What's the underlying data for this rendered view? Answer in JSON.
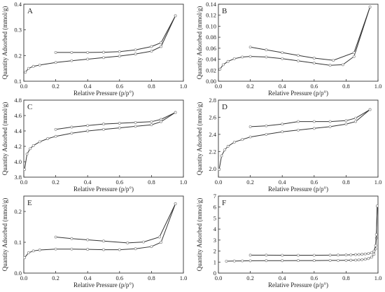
{
  "figure": {
    "panels": [
      "A",
      "B",
      "C",
      "D",
      "E",
      "F"
    ]
  },
  "chart_data": [
    {
      "panel": "A",
      "type": "line",
      "xlabel": "Relative Pressure (p/p°)",
      "ylabel": "Quantity Adsorbed (mmol/g)",
      "xlim": [
        0.0,
        1.0
      ],
      "ylim": [
        0.1,
        0.4
      ],
      "xticks": [
        "0.0",
        "0.2",
        "0.4",
        "0.6",
        "0.8",
        "1.0"
      ],
      "yticks": [
        "0.1",
        "0.2",
        "0.3",
        "0.4"
      ],
      "series": [
        {
          "role": "adsorption",
          "x": [
            0.01,
            0.03,
            0.06,
            0.1,
            0.2,
            0.3,
            0.4,
            0.5,
            0.6,
            0.7,
            0.8,
            0.86,
            0.95
          ],
          "y": [
            0.135,
            0.15,
            0.158,
            0.163,
            0.173,
            0.18,
            0.186,
            0.192,
            0.198,
            0.206,
            0.217,
            0.235,
            0.355
          ]
        },
        {
          "role": "desorption",
          "x": [
            0.95,
            0.86,
            0.8,
            0.7,
            0.6,
            0.5,
            0.4,
            0.3,
            0.2
          ],
          "y": [
            0.355,
            0.25,
            0.235,
            0.222,
            0.215,
            0.213,
            0.212,
            0.212,
            0.212
          ]
        }
      ]
    },
    {
      "panel": "B",
      "type": "line",
      "xlabel": "Relative Pressure (p/p°)",
      "ylabel": "Quantity Adsorbed (mmol/g)",
      "xlim": [
        0.0,
        1.0
      ],
      "ylim": [
        0.0,
        0.14
      ],
      "xticks": [
        "0.0",
        "0.2",
        "0.4",
        "0.6",
        "0.8",
        "1.0"
      ],
      "yticks": [
        "0.00",
        "0.02",
        "0.04",
        "0.06",
        "0.08",
        "0.10",
        "0.12",
        "0.14"
      ],
      "series": [
        {
          "role": "adsorption",
          "x": [
            0.01,
            0.03,
            0.06,
            0.1,
            0.15,
            0.2,
            0.3,
            0.4,
            0.5,
            0.6,
            0.7,
            0.78,
            0.85,
            0.95
          ],
          "y": [
            0.022,
            0.03,
            0.036,
            0.041,
            0.044,
            0.045,
            0.044,
            0.041,
            0.037,
            0.033,
            0.029,
            0.03,
            0.045,
            0.135
          ]
        },
        {
          "role": "desorption",
          "x": [
            0.95,
            0.85,
            0.72,
            0.6,
            0.5,
            0.4,
            0.3,
            0.2
          ],
          "y": [
            0.135,
            0.052,
            0.038,
            0.042,
            0.047,
            0.052,
            0.057,
            0.062
          ]
        }
      ]
    },
    {
      "panel": "C",
      "type": "line",
      "xlabel": "Relative Pressure (p/p°)",
      "ylabel": "Quantity Adsorbed (mmol/g)",
      "xlim": [
        0.0,
        1.0
      ],
      "ylim": [
        3.8,
        4.8
      ],
      "xticks": [
        "0.0",
        "0.2",
        "0.4",
        "0.6",
        "0.8",
        "1.0"
      ],
      "yticks": [
        "3.8",
        "4.0",
        "4.2",
        "4.4",
        "4.6",
        "4.8"
      ],
      "series": [
        {
          "role": "adsorption",
          "x": [
            0.005,
            0.02,
            0.04,
            0.06,
            0.1,
            0.15,
            0.2,
            0.3,
            0.4,
            0.5,
            0.6,
            0.7,
            0.8,
            0.86,
            0.95
          ],
          "y": [
            3.9,
            4.1,
            4.17,
            4.21,
            4.26,
            4.3,
            4.33,
            4.37,
            4.4,
            4.42,
            4.44,
            4.46,
            4.48,
            4.52,
            4.64
          ]
        },
        {
          "role": "desorption",
          "x": [
            0.95,
            0.86,
            0.8,
            0.7,
            0.6,
            0.5,
            0.4,
            0.3,
            0.2
          ],
          "y": [
            4.64,
            4.55,
            4.52,
            4.51,
            4.5,
            4.49,
            4.47,
            4.45,
            4.42
          ]
        }
      ]
    },
    {
      "panel": "D",
      "type": "line",
      "xlabel": "Relative Pressure (p/p°)",
      "ylabel": "Quantity Adsorbed (mmol/g)",
      "xlim": [
        0.0,
        1.0
      ],
      "ylim": [
        1.9,
        2.8
      ],
      "xticks": [
        "0.0",
        "0.2",
        "0.4",
        "0.6",
        "0.8",
        "1.0"
      ],
      "yticks": [
        "2.0",
        "2.2",
        "2.4",
        "2.6",
        "2.8"
      ],
      "series": [
        {
          "role": "adsorption",
          "x": [
            0.005,
            0.02,
            0.04,
            0.06,
            0.1,
            0.15,
            0.2,
            0.3,
            0.4,
            0.5,
            0.6,
            0.7,
            0.8,
            0.86,
            0.95
          ],
          "y": [
            1.99,
            2.15,
            2.22,
            2.26,
            2.31,
            2.34,
            2.37,
            2.4,
            2.43,
            2.45,
            2.47,
            2.49,
            2.52,
            2.55,
            2.69
          ]
        },
        {
          "role": "desorption",
          "x": [
            0.95,
            0.86,
            0.8,
            0.7,
            0.6,
            0.5,
            0.4,
            0.3,
            0.2
          ],
          "y": [
            2.69,
            2.59,
            2.56,
            2.55,
            2.55,
            2.55,
            2.52,
            2.5,
            2.49
          ]
        }
      ]
    },
    {
      "panel": "E",
      "type": "line",
      "xlabel": "Relative Pressure (p/p°)",
      "ylabel": "Quantity Adsorbed (mmol/g)",
      "xlim": [
        0.0,
        1.0
      ],
      "ylim": [
        0.0,
        0.25
      ],
      "xticks": [
        "0.0",
        "0.2",
        "0.4",
        "0.6",
        "0.8",
        "1.0"
      ],
      "yticks": [
        "0.0",
        "0.1",
        "0.2"
      ],
      "series": [
        {
          "role": "adsorption",
          "x": [
            0.005,
            0.03,
            0.06,
            0.1,
            0.2,
            0.3,
            0.4,
            0.5,
            0.6,
            0.7,
            0.8,
            0.86,
            0.95
          ],
          "y": [
            0.05,
            0.066,
            0.072,
            0.075,
            0.078,
            0.078,
            0.077,
            0.076,
            0.076,
            0.079,
            0.086,
            0.1,
            0.225
          ]
        },
        {
          "role": "desorption",
          "x": [
            0.95,
            0.85,
            0.75,
            0.65,
            0.5,
            0.4,
            0.3,
            0.2
          ],
          "y": [
            0.225,
            0.117,
            0.101,
            0.098,
            0.104,
            0.108,
            0.112,
            0.117
          ]
        }
      ]
    },
    {
      "panel": "F",
      "type": "line",
      "xlabel": "Relative Pressure (p/p°)",
      "ylabel": "Quantity Adsorbed (mmol/g)",
      "xlim": [
        0.0,
        1.0
      ],
      "ylim": [
        0,
        7
      ],
      "xticks": [
        "0.0",
        "0.2",
        "0.4",
        "0.6",
        "0.8",
        "1.0"
      ],
      "yticks": [
        "0",
        "1",
        "2",
        "3",
        "4",
        "5",
        "6",
        "7"
      ],
      "series": [
        {
          "role": "adsorption",
          "x": [
            0.05,
            0.1,
            0.15,
            0.2,
            0.3,
            0.4,
            0.5,
            0.6,
            0.7,
            0.75,
            0.8,
            0.83,
            0.86,
            0.88,
            0.9,
            0.92,
            0.94,
            0.96,
            0.975,
            0.985,
            0.99,
            0.995
          ],
          "y": [
            1.08,
            1.1,
            1.11,
            1.12,
            1.13,
            1.13,
            1.14,
            1.14,
            1.15,
            1.15,
            1.16,
            1.17,
            1.18,
            1.2,
            1.22,
            1.26,
            1.32,
            1.45,
            1.7,
            2.2,
            3.2,
            6.1
          ]
        },
        {
          "role": "desorption",
          "x": [
            0.995,
            0.99,
            0.985,
            0.975,
            0.96,
            0.94,
            0.92,
            0.9,
            0.88,
            0.86,
            0.83,
            0.8,
            0.75,
            0.7,
            0.6,
            0.5,
            0.4,
            0.3,
            0.2
          ],
          "y": [
            6.1,
            3.5,
            2.5,
            2.0,
            1.85,
            1.78,
            1.74,
            1.71,
            1.69,
            1.68,
            1.66,
            1.65,
            1.64,
            1.63,
            1.62,
            1.62,
            1.62,
            1.63,
            1.63
          ]
        }
      ]
    }
  ]
}
